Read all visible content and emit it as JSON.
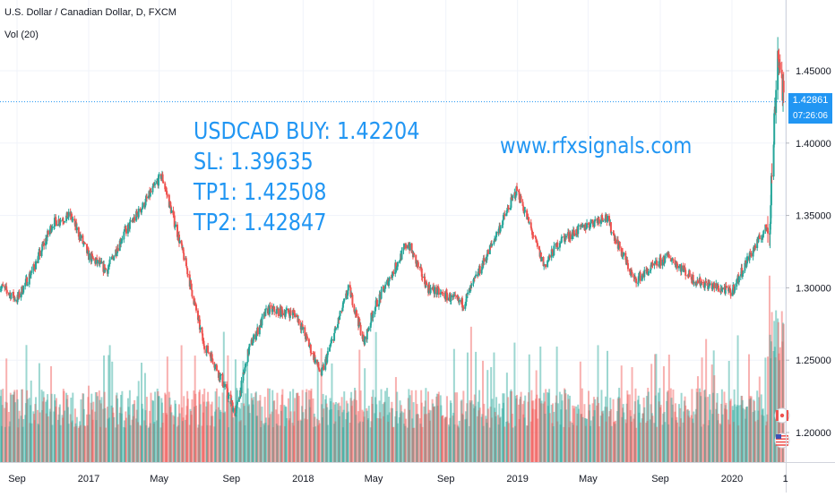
{
  "header": {
    "symbol_title": "U.S. Dollar / Canadian Dollar, D, FXCM",
    "volume_label": "Vol (20)"
  },
  "annotations": {
    "trade_lines": [
      "USDCAD BUY: 1.42204",
      "SL: 1.39635",
      "TP1: 1.42508",
      "TP2: 1.42847"
    ],
    "website": "www.rfxsignals.com"
  },
  "price_axis": {
    "current_price": "1.42861",
    "countdown": "07:26:06",
    "ticks": [
      "1.45000",
      "1.40000",
      "1.35000",
      "1.30000",
      "1.25000",
      "1.20000"
    ]
  },
  "time_axis": {
    "labels": [
      "Sep",
      "2017",
      "May",
      "Sep",
      "2018",
      "May",
      "Sep",
      "2019",
      "May",
      "Sep",
      "2020",
      "1"
    ]
  },
  "colors": {
    "up": "#26a69a",
    "down": "#ef5350",
    "accent": "#2196f3",
    "axis_text": "#131722",
    "grid": "#f0f3fa"
  },
  "flag_icons": [
    "canada-flag-icon",
    "us-flag-icon"
  ],
  "chart_data": {
    "type": "candlestick",
    "title": "U.S. Dollar / Canadian Dollar, D, FXCM",
    "interval": "D",
    "y_ticks": [
      1.45,
      1.4,
      1.35,
      1.3,
      1.25,
      1.2
    ],
    "x_tick_labels": [
      "Sep",
      "2017",
      "May",
      "Sep",
      "2018",
      "May",
      "Sep",
      "2019",
      "May",
      "Sep",
      "2020",
      "1"
    ],
    "last_price": 1.42861,
    "price_path": {
      "dates": [
        "2016-08-01",
        "2016-09-01",
        "2016-10-01",
        "2016-11-01",
        "2016-12-01",
        "2017-01-01",
        "2017-02-01",
        "2017-03-01",
        "2017-04-01",
        "2017-05-05",
        "2017-06-15",
        "2017-07-15",
        "2017-08-01",
        "2017-09-08",
        "2017-10-01",
        "2017-11-01",
        "2017-12-20",
        "2018-02-01",
        "2018-03-20",
        "2018-04-15",
        "2018-05-01",
        "2018-06-28",
        "2018-08-01",
        "2018-10-01",
        "2018-11-15",
        "2018-12-31",
        "2019-02-15",
        "2019-03-15",
        "2019-05-30",
        "2019-07-19",
        "2019-09-15",
        "2019-10-30",
        "2019-12-31",
        "2020-02-01",
        "2020-03-05",
        "2020-03-19",
        "2020-03-31"
      ],
      "close": [
        1.302,
        1.292,
        1.315,
        1.345,
        1.35,
        1.322,
        1.312,
        1.337,
        1.355,
        1.378,
        1.317,
        1.262,
        1.25,
        1.213,
        1.258,
        1.285,
        1.282,
        1.24,
        1.3,
        1.262,
        1.285,
        1.331,
        1.3,
        1.289,
        1.327,
        1.368,
        1.315,
        1.333,
        1.35,
        1.305,
        1.322,
        1.305,
        1.297,
        1.323,
        1.345,
        1.465,
        1.425
      ]
    },
    "volume": {
      "note": "daily tick volume bars, colored by candle direction"
    }
  }
}
